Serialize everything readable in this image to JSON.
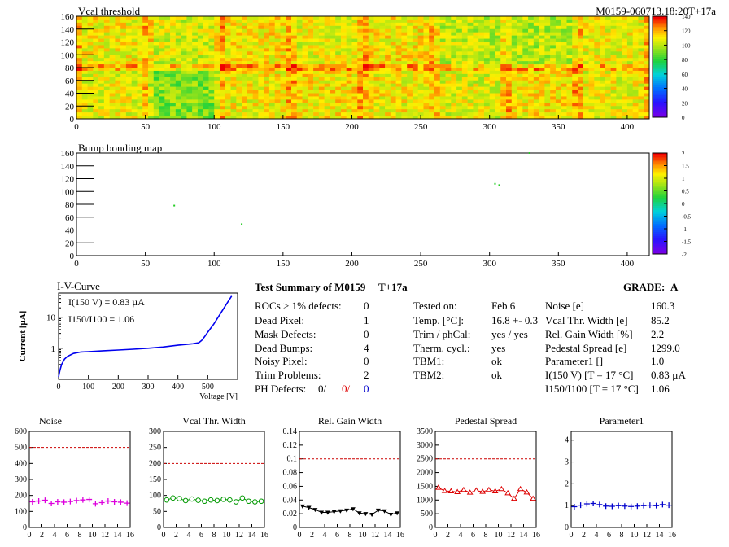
{
  "header": {
    "map_title": "Vcal threshold",
    "module_label": "M0159-060713.18:20T+17a",
    "bump_title": "Bump bonding map"
  },
  "colors": {
    "noise": "#dd00dd",
    "vcal": "#009900",
    "gain": "#000000",
    "pedestal": "#dd0000",
    "parameter1": "#0000cc",
    "limit": "#cc0000",
    "iv": "#0000ee"
  },
  "summary": {
    "title": "Test Summary of M0159",
    "tag": "T+17a",
    "grade_label": "GRADE:",
    "grade_value": "A",
    "left": [
      {
        "label": "ROCs > 1% defects:",
        "value": "0"
      },
      {
        "label": "Dead Pixel:",
        "value": "1"
      },
      {
        "label": "Mask Defects:",
        "value": "0"
      },
      {
        "label": "Dead Bumps:",
        "value": "4"
      },
      {
        "label": "Noisy Pixel:",
        "value": "0"
      },
      {
        "label": "Trim Problems:",
        "value": "2"
      }
    ],
    "ph_label": "PH Defects:",
    "ph_values": [
      "0/",
      "0/",
      "0"
    ],
    "middle": [
      {
        "label": "Tested on:",
        "value": "Feb 6"
      },
      {
        "label": "Temp. [°C]:",
        "value": "16.8 +- 0.3"
      },
      {
        "label": "Trim / phCal:",
        "value": "yes / yes"
      },
      {
        "label": "Therm. cycl.:",
        "value": "yes"
      },
      {
        "label": "TBM1:",
        "value": "ok"
      },
      {
        "label": "TBM2:",
        "value": "ok"
      }
    ],
    "right": [
      {
        "label": "Noise [e]",
        "value": "160.3"
      },
      {
        "label": "Vcal Thr. Width [e]",
        "value": "85.2"
      },
      {
        "label": "Rel. Gain Width [%]",
        "value": "2.2"
      },
      {
        "label": "Pedestal Spread [e]",
        "value": "1299.0"
      },
      {
        "label": "Parameter1 []",
        "value": "1.0"
      },
      {
        "label": "I(150 V) [T = 17 °C]",
        "value": "0.83 µA"
      },
      {
        "label": "I150/I100  [T = 17 °C]",
        "value": "1.06"
      }
    ]
  },
  "chart_data": [
    {
      "type": "heatmap",
      "title": "Vcal threshold",
      "xlim": [
        0,
        416
      ],
      "ylim": [
        0,
        160
      ],
      "xticks": [
        0,
        50,
        100,
        150,
        200,
        250,
        300,
        350,
        400
      ],
      "yticks": [
        0,
        20,
        40,
        60,
        80,
        100,
        120,
        140,
        160
      ],
      "zlim": [
        0,
        140
      ],
      "zticks": [
        0,
        20,
        40,
        60,
        80,
        100,
        120,
        140
      ],
      "note": "",
      "roc_means_top": [
        110,
        105,
        112,
        108,
        112,
        102,
        100,
        108
      ],
      "roc_means_bottom": [
        108,
        92,
        110,
        112,
        110,
        106,
        112,
        108
      ]
    },
    {
      "type": "heatmap",
      "title": "Bump bonding map",
      "xlim": [
        0,
        416
      ],
      "ylim": [
        0,
        160
      ],
      "xticks": [
        0,
        50,
        100,
        150,
        200,
        250,
        300,
        350,
        400
      ],
      "yticks": [
        0,
        20,
        40,
        60,
        80,
        100,
        120,
        140,
        160
      ],
      "zlim": [
        -2,
        2
      ],
      "zticks": [
        "-2",
        "-1.5",
        "-1",
        "-0.5",
        "0",
        "0.5",
        "1",
        "1.5",
        "2"
      ],
      "points": [
        [
          71,
          78
        ],
        [
          120,
          49
        ],
        [
          304,
          112
        ],
        [
          307,
          110
        ],
        [
          329,
          160
        ]
      ]
    },
    {
      "type": "line",
      "title": "I-V-Curve",
      "xlabel": "Voltage [V]",
      "ylabel": "Current [µA]",
      "xlim": [
        0,
        600
      ],
      "xticks": [
        0,
        100,
        200,
        300,
        400,
        500,
        600
      ],
      "ylim": [
        0.1,
        60
      ],
      "yscale": "log",
      "ytick_labels": [
        "1",
        "10"
      ],
      "annotation_line1": "I(150 V) = 0.83 µA",
      "annotation_line2": "I150/I100 =  1.06",
      "x": [
        0,
        5,
        10,
        20,
        30,
        50,
        75,
        100,
        150,
        200,
        250,
        300,
        350,
        400,
        450,
        470,
        480,
        490,
        500,
        520,
        540,
        560,
        580
      ],
      "y": [
        0.12,
        0.2,
        0.3,
        0.45,
        0.55,
        0.68,
        0.76,
        0.78,
        0.83,
        0.88,
        0.93,
        1.0,
        1.1,
        1.25,
        1.4,
        1.5,
        1.8,
        2.4,
        3.3,
        6.0,
        12.0,
        24.0,
        48.0
      ]
    },
    {
      "type": "scatter",
      "title": "Noise",
      "color_key": "noise",
      "xlim": [
        0,
        16
      ],
      "ylim": [
        0,
        600
      ],
      "xticks": [
        0,
        2,
        4,
        6,
        8,
        10,
        12,
        14,
        16
      ],
      "yticks": [
        0,
        100,
        200,
        300,
        400,
        500,
        600
      ],
      "limit": 500,
      "marker": "plus",
      "x": [
        0,
        1,
        2,
        3,
        4,
        5,
        6,
        7,
        8,
        9,
        10,
        11,
        12,
        13,
        14,
        15
      ],
      "values": [
        160,
        165,
        170,
        150,
        160,
        158,
        162,
        168,
        172,
        175,
        148,
        155,
        165,
        160,
        158,
        152
      ]
    },
    {
      "type": "line",
      "title": "Vcal Thr. Width",
      "color_key": "vcal",
      "xlim": [
        0,
        16
      ],
      "ylim": [
        0,
        300
      ],
      "xticks": [
        0,
        2,
        4,
        6,
        8,
        10,
        12,
        14,
        16
      ],
      "yticks": [
        0,
        50,
        100,
        150,
        200,
        250,
        300
      ],
      "limit": 200,
      "marker": "circle",
      "x": [
        0,
        1,
        2,
        3,
        4,
        5,
        6,
        7,
        8,
        9,
        10,
        11,
        12,
        13,
        14,
        15
      ],
      "values": [
        86,
        92,
        90,
        84,
        89,
        85,
        82,
        86,
        84,
        88,
        86,
        80,
        92,
        82,
        80,
        82
      ]
    },
    {
      "type": "line",
      "title": "Rel. Gain Width",
      "color_key": "gain",
      "xlim": [
        0,
        16
      ],
      "ylim": [
        0,
        0.14
      ],
      "xticks": [
        0,
        2,
        4,
        6,
        8,
        10,
        12,
        14,
        16
      ],
      "yticks": [
        "0",
        "0.02",
        "0.04",
        "0.06",
        "0.08",
        "0.1",
        "0.12",
        "0.14"
      ],
      "limit": 0.1,
      "marker": "triangle-down",
      "x": [
        0,
        1,
        2,
        3,
        4,
        5,
        6,
        7,
        8,
        9,
        10,
        11,
        12,
        13,
        14,
        15
      ],
      "values": [
        0.031,
        0.029,
        0.026,
        0.022,
        0.022,
        0.023,
        0.024,
        0.025,
        0.027,
        0.021,
        0.02,
        0.019,
        0.025,
        0.024,
        0.019,
        0.021
      ]
    },
    {
      "type": "line",
      "title": "Pedestal Spread",
      "color_key": "pedestal",
      "xlim": [
        0,
        16
      ],
      "ylim": [
        0,
        3500
      ],
      "xticks": [
        0,
        2,
        4,
        6,
        8,
        10,
        12,
        14,
        16
      ],
      "yticks": [
        0,
        500,
        1000,
        1500,
        2000,
        2500,
        3000,
        3500
      ],
      "limit": 2500,
      "marker": "triangle-up",
      "x": [
        0,
        1,
        2,
        3,
        4,
        5,
        6,
        7,
        8,
        9,
        10,
        11,
        12,
        13,
        14,
        15
      ],
      "values": [
        1450,
        1330,
        1320,
        1290,
        1370,
        1270,
        1350,
        1300,
        1370,
        1320,
        1400,
        1250,
        1050,
        1400,
        1280,
        1050
      ]
    },
    {
      "type": "scatter",
      "title": "Parameter1",
      "color_key": "parameter1",
      "xlim": [
        0,
        16
      ],
      "ylim": [
        0,
        4.4
      ],
      "xticks": [
        0,
        2,
        4,
        6,
        8,
        10,
        12,
        14,
        16
      ],
      "yticks": [
        0,
        1,
        2,
        3,
        4
      ],
      "marker": "plus",
      "x": [
        0,
        1,
        2,
        3,
        4,
        5,
        6,
        7,
        8,
        9,
        10,
        11,
        12,
        13,
        14,
        15
      ],
      "values": [
        0.95,
        1.02,
        1.08,
        1.1,
        1.05,
        0.98,
        0.97,
        1.0,
        0.98,
        0.96,
        0.98,
        1.0,
        1.02,
        1.0,
        1.05,
        1.02
      ]
    }
  ]
}
